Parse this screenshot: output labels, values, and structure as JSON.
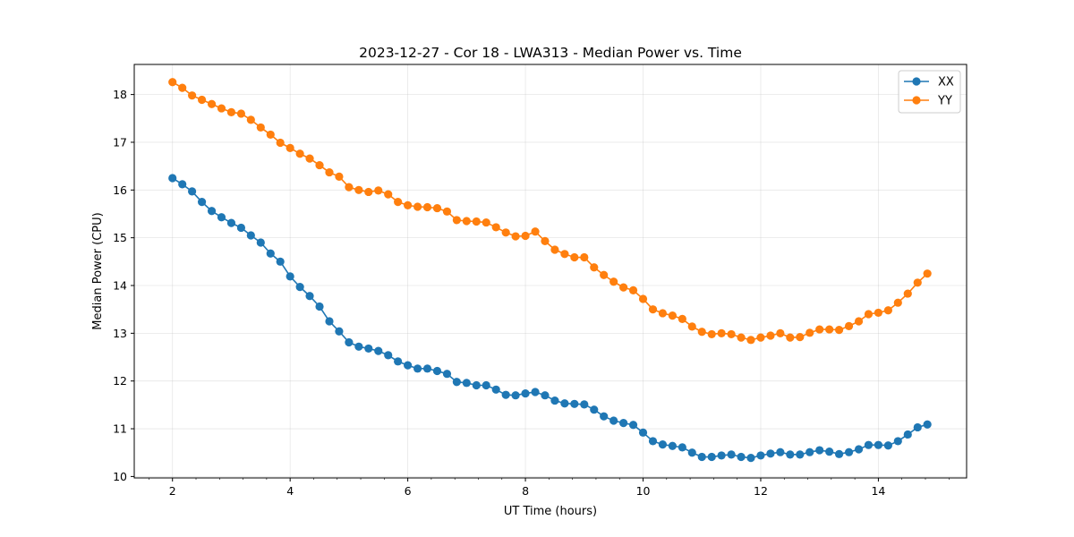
{
  "chart_data": {
    "type": "line",
    "title": "2023-12-27 - Cor 18 - LWA313 - Median Power vs. Time",
    "xlabel": "UT Time (hours)",
    "ylabel": "Median Power (CPU)",
    "xlim": [
      1.35,
      15.5
    ],
    "ylim": [
      9.97,
      18.63
    ],
    "xticks": [
      2,
      4,
      6,
      8,
      10,
      12,
      14
    ],
    "yticks": [
      10,
      11,
      12,
      13,
      14,
      15,
      16,
      17,
      18
    ],
    "xminor_step": 0.4,
    "grid": true,
    "legend_position": "top-right",
    "x": [
      2.0,
      2.167,
      2.333,
      2.5,
      2.667,
      2.833,
      3.0,
      3.167,
      3.333,
      3.5,
      3.667,
      3.833,
      4.0,
      4.167,
      4.333,
      4.5,
      4.667,
      4.833,
      5.0,
      5.167,
      5.333,
      5.5,
      5.667,
      5.833,
      6.0,
      6.167,
      6.333,
      6.5,
      6.667,
      6.833,
      7.0,
      7.167,
      7.333,
      7.5,
      7.667,
      7.833,
      8.0,
      8.167,
      8.333,
      8.5,
      8.667,
      8.833,
      9.0,
      9.167,
      9.333,
      9.5,
      9.667,
      9.833,
      10.0,
      10.167,
      10.333,
      10.5,
      10.667,
      10.833,
      11.0,
      11.167,
      11.333,
      11.5,
      11.667,
      11.833,
      12.0,
      12.167,
      12.333,
      12.5,
      12.667,
      12.833,
      13.0,
      13.167,
      13.333,
      13.5,
      13.667,
      13.833,
      14.0,
      14.167,
      14.333,
      14.5,
      14.667,
      14.833
    ],
    "series": [
      {
        "name": "XX",
        "color": "#1f77b4",
        "values": [
          16.25,
          16.12,
          15.97,
          15.75,
          15.56,
          15.43,
          15.31,
          15.21,
          15.05,
          14.9,
          14.67,
          14.5,
          14.19,
          13.97,
          13.78,
          13.56,
          13.25,
          13.04,
          12.81,
          12.72,
          12.68,
          12.63,
          12.54,
          12.41,
          12.33,
          12.26,
          12.26,
          12.21,
          12.15,
          11.98,
          11.96,
          11.91,
          11.91,
          11.82,
          11.71,
          11.7,
          11.74,
          11.77,
          11.7,
          11.59,
          11.53,
          11.52,
          11.51,
          11.4,
          11.26,
          11.17,
          11.12,
          11.08,
          10.92,
          10.74,
          10.67,
          10.64,
          10.61,
          10.5,
          10.41,
          10.41,
          10.44,
          10.46,
          10.41,
          10.39,
          10.44,
          10.48,
          10.51,
          10.46,
          10.46,
          10.51,
          10.55,
          10.52,
          10.47,
          10.51,
          10.57,
          10.66,
          10.66,
          10.65,
          10.74,
          10.88,
          11.03,
          11.09
        ]
      },
      {
        "name": "YY",
        "color": "#ff7f0e",
        "values": [
          18.26,
          18.14,
          17.98,
          17.89,
          17.8,
          17.71,
          17.63,
          17.6,
          17.47,
          17.31,
          17.16,
          16.99,
          16.88,
          16.76,
          16.66,
          16.52,
          16.37,
          16.28,
          16.06,
          16.0,
          15.96,
          15.99,
          15.91,
          15.75,
          15.68,
          15.65,
          15.64,
          15.62,
          15.55,
          15.37,
          15.35,
          15.34,
          15.32,
          15.22,
          15.11,
          15.03,
          15.04,
          15.13,
          14.93,
          14.75,
          14.66,
          14.59,
          14.59,
          14.38,
          14.22,
          14.08,
          13.96,
          13.9,
          13.72,
          13.5,
          13.42,
          13.37,
          13.3,
          13.14,
          13.03,
          12.98,
          13.0,
          12.98,
          12.91,
          12.86,
          12.91,
          12.95,
          13.0,
          12.91,
          12.92,
          13.01,
          13.08,
          13.08,
          13.07,
          13.15,
          13.25,
          13.4,
          13.43,
          13.48,
          13.64,
          13.83,
          14.06,
          14.25
        ]
      }
    ]
  }
}
